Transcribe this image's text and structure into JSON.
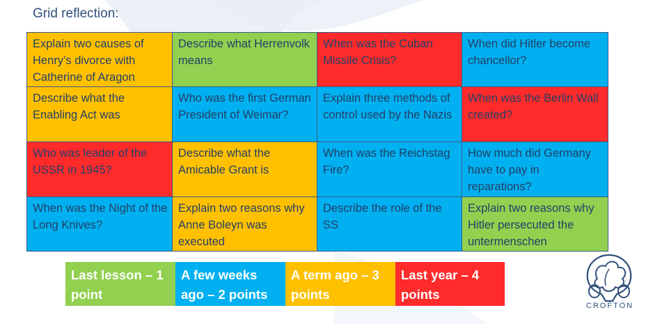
{
  "title": "Grid reflection:",
  "grid": [
    [
      {
        "text": "Explain two causes of Henry’s divorce with Catherine of Aragon",
        "color": "orange"
      },
      {
        "text": "Describe what Herrenvolk means",
        "color": "green"
      },
      {
        "text": "When was the Cuban Missile Crisis?",
        "color": "red"
      },
      {
        "text": "When did Hitler become chancellor?",
        "color": "blue"
      }
    ],
    [
      {
        "text": "Describe what the Enabling Act was",
        "color": "orange"
      },
      {
        "text": "Who was the first German President of Weimar?",
        "color": "blue"
      },
      {
        "text": "Explain three methods of control used by the Nazis",
        "color": "blue"
      },
      {
        "text": "When was the Berlin Wall created?",
        "color": "red"
      }
    ],
    [
      {
        "text": "Who was leader of the USSR in 1945?",
        "color": "red"
      },
      {
        "text": "Describe what the Amicable Grant is",
        "color": "orange"
      },
      {
        "text": "When was the Reichstag Fire?",
        "color": "blue"
      },
      {
        "text": "How much did Germany have to pay in reparations?",
        "color": "blue"
      }
    ],
    [
      {
        "text": "When was the Night of the Long Knives?",
        "color": "blue"
      },
      {
        "text": "Explain two reasons why Anne Boleyn was executed",
        "color": "orange"
      },
      {
        "text": "Describe the role of the SS",
        "color": "blue"
      },
      {
        "text": "Explain two reasons why Hitler persecuted the untermenschen",
        "color": "green"
      }
    ]
  ],
  "legend": [
    {
      "text": "Last lesson – 1 point",
      "color": "green"
    },
    {
      "text": "A few weeks ago – 2 points",
      "color": "blue"
    },
    {
      "text": "A term ago – 3 points",
      "color": "orange"
    },
    {
      "text": "Last year – 4 points",
      "color": "red"
    }
  ],
  "logo": {
    "text": "CROFTON",
    "icon": "oak-leaf-acorn-crest-icon"
  },
  "colors": {
    "orange": "#ffc000",
    "green": "#92d050",
    "red": "#ff2b2b",
    "blue": "#00b0f0",
    "text": "#243f66"
  }
}
